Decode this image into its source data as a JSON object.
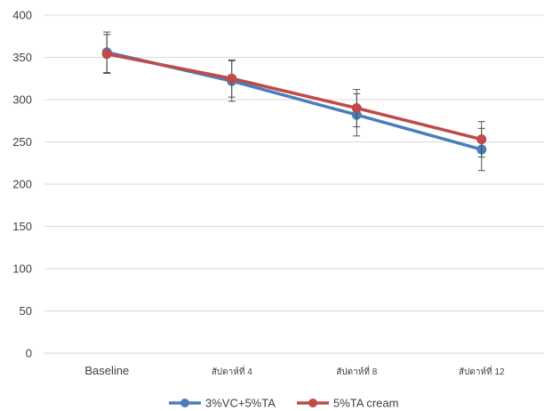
{
  "chart_data": {
    "type": "line",
    "title": "",
    "xlabel": "",
    "ylabel": "",
    "categories": [
      "Baseline",
      "สัปดาห์ที่ 4",
      "สัปดาห์ที่ 8",
      "สัปดาห์ที่ 12"
    ],
    "ylim": [
      0,
      400
    ],
    "yticks": [
      0,
      50,
      100,
      150,
      200,
      250,
      300,
      350,
      400
    ],
    "grid": true,
    "legend_position": "bottom",
    "series": [
      {
        "name": "3%VC+5%TA",
        "color": "#4a7ebb",
        "values": [
          356,
          322,
          282,
          241
        ],
        "error": [
          24,
          24,
          25,
          25
        ]
      },
      {
        "name": "5%TA cream",
        "color": "#be4b48",
        "values": [
          354,
          325,
          290,
          253
        ],
        "error": [
          23,
          22,
          22,
          21
        ]
      }
    ]
  }
}
